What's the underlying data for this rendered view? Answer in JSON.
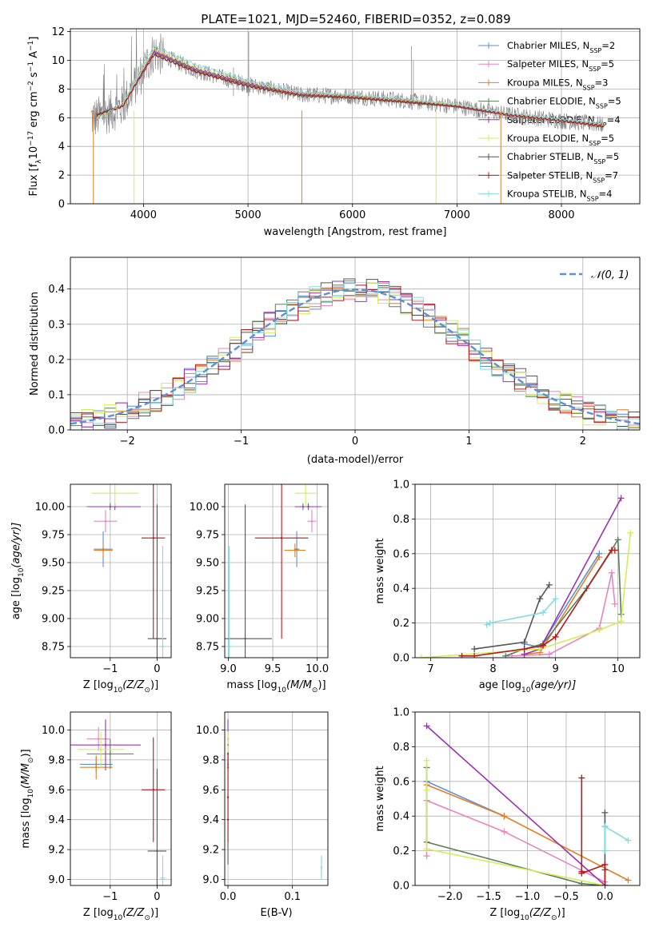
{
  "title": "PLATE=1021, MJD=52460, FIBERID=0352, z=0.089",
  "colors": {
    "chab_miles": "#5b8fd6",
    "salp_miles": "#e685be",
    "krou_miles": "#e67e22",
    "chab_elodie": "#5a7f5a",
    "salp_elodie": "#9b32b4",
    "krou_elodie": "#d4ec5a",
    "chab_stelib": "#555555",
    "salp_stelib": "#b5191c",
    "krou_stelib": "#82dce0",
    "gauss": "#5b8fd6",
    "grid": "#b0b0b0",
    "data": "#808080"
  },
  "chart_data": [
    {
      "id": "spectrum",
      "type": "line",
      "xlabel": "wavelength [Angstrom, rest frame]",
      "ylabel_main": "Flux [f",
      "ylabel_sub": "λ",
      "ylabel_rest": "10",
      "ylabel_exp": "−17",
      "ylabel_tail": " erg cm",
      "ylabel_e2": "−2",
      "ylabel_s": " s",
      "ylabel_e3": "−1",
      "ylabel_end": " A",
      "ylabel_e4": "−1",
      "ylabel_close": "]",
      "xlim": [
        3300,
        8750
      ],
      "ylim": [
        0,
        12.2
      ],
      "xticks": [
        4000,
        5000,
        6000,
        7000,
        8000
      ],
      "yticks": [
        0,
        2,
        4,
        6,
        8,
        10,
        12
      ],
      "legend_position": "top-right",
      "series": [
        {
          "name": "Chabrier MILES, N",
          "sub": "SSP",
          "tail": "=2",
          "key": "chab_miles",
          "x": [
            3550,
            3800,
            4100,
            4500,
            5000,
            5500,
            6000,
            6500,
            7000,
            7500,
            8000,
            8400
          ],
          "y": [
            6.0,
            6.8,
            10.6,
            9.3,
            8.3,
            7.6,
            7.5,
            7.2,
            6.8,
            6.2,
            5.8,
            5.5
          ]
        },
        {
          "name": "Salpeter MILES, N",
          "sub": "SSP",
          "tail": "=5",
          "key": "salp_miles",
          "x": [
            3550,
            3800,
            4100,
            4500,
            5000,
            5500,
            6000,
            6500,
            7000,
            7500,
            8000,
            8400
          ],
          "y": [
            6.1,
            6.9,
            10.7,
            9.4,
            8.4,
            7.7,
            7.5,
            7.2,
            6.8,
            6.2,
            5.8,
            5.5
          ]
        },
        {
          "name": "Kroupa MILES, N",
          "sub": "SSP",
          "tail": "=3",
          "key": "krou_miles",
          "x": [
            3550,
            3800,
            4100,
            4500,
            5000,
            5500,
            6000,
            6500,
            7000,
            7500,
            8000,
            8400
          ],
          "y": [
            6.0,
            6.8,
            10.6,
            9.3,
            8.3,
            7.6,
            7.5,
            7.2,
            6.8,
            6.2,
            5.8,
            5.5
          ]
        },
        {
          "name": "Chabrier ELODIE, N",
          "sub": "SSP",
          "tail": "=5",
          "key": "chab_elodie",
          "x": [
            3550,
            3800,
            4100,
            4500,
            5000,
            5500,
            6000,
            6500,
            7000,
            7500,
            8000,
            8400
          ],
          "y": [
            6.2,
            6.9,
            10.5,
            9.3,
            8.3,
            7.6,
            7.4,
            7.1,
            6.8,
            6.2,
            5.8,
            5.5
          ]
        },
        {
          "name": "Salpeter ELODIE, N",
          "sub": "SSP",
          "tail": "=4",
          "key": "salp_elodie",
          "x": [
            3550,
            3800,
            4100,
            4500,
            5000,
            5500,
            6000,
            6500,
            7000,
            7500,
            8000,
            8400
          ],
          "y": [
            6.1,
            6.9,
            10.6,
            9.4,
            8.4,
            7.7,
            7.5,
            7.2,
            6.8,
            6.2,
            5.8,
            5.5
          ]
        },
        {
          "name": "Kroupa ELODIE, N",
          "sub": "SSP",
          "tail": "=5",
          "key": "krou_elodie",
          "x": [
            3550,
            3800,
            4100,
            4500,
            5000,
            5500,
            6000,
            6500,
            7000,
            7500,
            8000,
            8400
          ],
          "y": [
            6.0,
            6.9,
            10.8,
            9.5,
            8.5,
            7.7,
            7.5,
            7.2,
            6.9,
            6.2,
            5.8,
            5.5
          ]
        },
        {
          "name": "Chabrier STELIB, N",
          "sub": "SSP",
          "tail": "=5",
          "key": "chab_stelib",
          "x": [
            3550,
            3800,
            4100,
            4500,
            5000,
            5500,
            6000,
            6500,
            7000,
            7500,
            8000,
            8400
          ],
          "y": [
            6.2,
            6.8,
            10.4,
            9.2,
            8.2,
            7.5,
            7.4,
            7.1,
            6.8,
            6.2,
            5.8,
            5.4
          ]
        },
        {
          "name": "Salpeter STELIB, N",
          "sub": "SSP",
          "tail": "=7",
          "key": "salp_stelib",
          "x": [
            3550,
            3800,
            4100,
            4500,
            5000,
            5500,
            6000,
            6500,
            7000,
            7500,
            8000,
            8400
          ],
          "y": [
            6.2,
            6.8,
            10.4,
            9.2,
            8.2,
            7.6,
            7.4,
            7.1,
            6.8,
            6.2,
            5.8,
            5.4
          ]
        },
        {
          "name": "Kroupa STELIB, N",
          "sub": "SSP",
          "tail": "=4",
          "key": "krou_stelib",
          "x": [
            3550,
            3800,
            4100,
            4500,
            5000,
            5500,
            6000,
            6500,
            7000,
            7500,
            8000,
            8400
          ],
          "y": [
            5.9,
            7.0,
            11.0,
            9.7,
            8.6,
            7.8,
            7.6,
            7.3,
            6.9,
            6.3,
            5.9,
            5.6
          ]
        }
      ]
    },
    {
      "id": "residuals",
      "type": "line",
      "xlabel": "(data-model)/error",
      "ylabel": "Normed distribution",
      "xlim": [
        -2.5,
        2.5
      ],
      "ylim": [
        0,
        0.49
      ],
      "xticks": [
        -2,
        -1,
        0,
        1,
        2
      ],
      "yticks": [
        0.0,
        0.1,
        0.2,
        0.3,
        0.4
      ],
      "legend": "𝒩(0, 1)",
      "legend_position": "top-right"
    },
    {
      "id": "age_vs_Z",
      "type": "scatter",
      "xlabel": "Z [log",
      "xlabel_sub": "10",
      "xlabel_tail": "(Z/Z",
      "xlabel_sun": "⊙",
      "xlabel_end": ")]",
      "ylabel": "age  [log",
      "ylabel_sub": "10",
      "ylabel_tail": "(age/yr)]",
      "xlim": [
        -1.85,
        0.3
      ],
      "ylim": [
        8.65,
        10.2
      ],
      "xticks": [
        -1,
        0
      ],
      "yticks": [
        8.75,
        9.0,
        9.25,
        9.5,
        9.75,
        10.0
      ],
      "points": [
        {
          "key": "chab_miles",
          "x": -1.15,
          "y": 9.62,
          "xerr": 0.2,
          "yerr": 0.16
        },
        {
          "key": "salp_miles",
          "x": -1.1,
          "y": 9.87,
          "xerr": 0.25,
          "yerr": 0.1
        },
        {
          "key": "krou_miles",
          "x": -1.15,
          "y": 9.61,
          "xerr": 0.2,
          "yerr": 0.06
        },
        {
          "key": "chab_elodie",
          "x": -1.0,
          "y": 10.0,
          "xerr": 0.5,
          "yerr": 0.03
        },
        {
          "key": "salp_elodie",
          "x": -0.9,
          "y": 10.0,
          "xerr": 0.55,
          "yerr": 0.03
        },
        {
          "key": "krou_elodie",
          "x": -0.9,
          "y": 10.12,
          "xerr": 0.5,
          "yerr": 0.12
        },
        {
          "key": "chab_stelib",
          "x": 0.0,
          "y": 8.82,
          "xerr": 0.2,
          "yerr": 1.2
        },
        {
          "key": "salp_stelib",
          "x": -0.08,
          "y": 9.72,
          "xerr": 0.25,
          "yerr": 0.9
        },
        {
          "key": "krou_stelib",
          "x": 0.12,
          "y": 8.75,
          "xerr": 0.05,
          "yerr": 0.9
        }
      ]
    },
    {
      "id": "age_vs_mass",
      "type": "scatter",
      "xlabel": "mass [log",
      "xlabel_sub": "10",
      "xlabel_tail": "(M/M",
      "xlabel_sun": "⊙",
      "xlabel_end": ")]",
      "xlim": [
        8.96,
        10.12
      ],
      "ylim": [
        8.65,
        10.2
      ],
      "xticks": [
        9.0,
        9.5,
        10.0
      ],
      "yticks": [
        8.75,
        9.0,
        9.25,
        9.5,
        9.75,
        10.0
      ],
      "points": [
        {
          "key": "chab_miles",
          "x": 9.77,
          "y": 9.62,
          "xerr": 0.03,
          "yerr": 0.16
        },
        {
          "key": "salp_miles",
          "x": 9.94,
          "y": 9.87,
          "xerr": 0.05,
          "yerr": 0.1
        },
        {
          "key": "krou_miles",
          "x": 9.75,
          "y": 9.61,
          "xerr": 0.12,
          "yerr": 0.06
        },
        {
          "key": "chab_elodie",
          "x": 9.84,
          "y": 10.0,
          "xerr": 0.08,
          "yerr": 0.03
        },
        {
          "key": "salp_elodie",
          "x": 9.9,
          "y": 10.0,
          "xerr": 0.15,
          "yerr": 0.03
        },
        {
          "key": "krou_elodie",
          "x": 9.87,
          "y": 10.12,
          "xerr": 0.12,
          "yerr": 0.12
        },
        {
          "key": "chab_stelib",
          "x": 9.19,
          "y": 8.82,
          "xerr": 0.3,
          "yerr": 1.2
        },
        {
          "key": "salp_stelib",
          "x": 9.6,
          "y": 9.72,
          "xerr": 0.3,
          "yerr": 0.9
        },
        {
          "key": "krou_stelib",
          "x": 9.01,
          "y": 8.75,
          "xerr": 0.1,
          "yerr": 0.9
        }
      ]
    },
    {
      "id": "weights_vs_age",
      "type": "line",
      "xlabel": "age  [log",
      "xlabel_sub": "10",
      "xlabel_tail": "(age/yr)]",
      "ylabel": "mass weight",
      "xlim": [
        6.75,
        10.35
      ],
      "ylim": [
        0,
        1.0
      ],
      "xticks": [
        7,
        8,
        9,
        10
      ],
      "yticks": [
        0.0,
        0.2,
        0.4,
        0.6,
        0.8,
        1.0
      ],
      "series": [
        {
          "key": "chab_miles",
          "x": [
            8.5,
            8.75,
            9.7
          ],
          "y": [
            0.08,
            0.06,
            0.6
          ]
        },
        {
          "key": "salp_miles",
          "x": [
            8.3,
            8.9,
            9.7,
            9.9,
            9.95
          ],
          "y": [
            0.01,
            0.02,
            0.17,
            0.49,
            0.31
          ]
        },
        {
          "key": "krou_miles",
          "x": [
            8.5,
            8.75,
            9.7
          ],
          "y": [
            0.02,
            0.03,
            0.58
          ]
        },
        {
          "key": "chab_elodie",
          "x": [
            8.2,
            8.5,
            8.8,
            9.5,
            10.0,
            10.05
          ],
          "y": [
            0.01,
            0.05,
            0.08,
            0.4,
            0.68,
            0.25
          ]
        },
        {
          "key": "salp_elodie",
          "x": [
            8.5,
            8.75,
            10.05
          ],
          "y": [
            0.02,
            0.05,
            0.92
          ]
        },
        {
          "key": "krou_elodie",
          "x": [
            6.85,
            8.75,
            9.7,
            10.05,
            10.2
          ],
          "y": [
            0.0,
            0.05,
            0.16,
            0.21,
            0.72
          ]
        },
        {
          "key": "chab_stelib",
          "x": [
            7.7,
            8.5,
            8.75,
            8.9
          ],
          "y": [
            0.05,
            0.09,
            0.34,
            0.42
          ]
        },
        {
          "key": "salp_stelib",
          "x": [
            7.5,
            7.7,
            8.5,
            8.8,
            9.0,
            9.9,
            9.95
          ],
          "y": [
            0.01,
            0.01,
            0.05,
            0.07,
            0.12,
            0.62,
            0.62
          ]
        },
        {
          "key": "krou_stelib",
          "x": [
            7.9,
            7.95,
            8.8,
            9.0
          ],
          "y": [
            0.19,
            0.2,
            0.26,
            0.34
          ]
        }
      ]
    },
    {
      "id": "mass_vs_Z",
      "type": "scatter",
      "xlabel": "Z [log",
      "xlabel_sub": "10",
      "xlabel_tail": "(Z/Z",
      "xlabel_sun": "⊙",
      "xlabel_end": ")]",
      "ylabel": "mass [log",
      "ylabel_sub": "10",
      "ylabel_tail": "(M/M",
      "ylabel_sun": "⊙",
      "ylabel_end": ")]",
      "xlim": [
        -1.85,
        0.3
      ],
      "ylim": [
        8.96,
        10.12
      ],
      "xticks": [
        -1,
        0
      ],
      "yticks": [
        9.0,
        9.2,
        9.4,
        9.6,
        9.8,
        10.0
      ],
      "points": [
        {
          "key": "chab_miles",
          "x": -1.3,
          "y": 9.77,
          "xerr": 0.35,
          "yerr": 0.05
        },
        {
          "key": "salp_miles",
          "x": -1.25,
          "y": 9.94,
          "xerr": 0.25,
          "yerr": 0.08
        },
        {
          "key": "krou_miles",
          "x": -1.3,
          "y": 9.75,
          "xerr": 0.35,
          "yerr": 0.08
        },
        {
          "key": "chab_elodie",
          "x": -1.0,
          "y": 9.84,
          "xerr": 0.5,
          "yerr": 0.1
        },
        {
          "key": "salp_elodie",
          "x": -1.1,
          "y": 9.9,
          "xerr": 0.75,
          "yerr": 0.17
        },
        {
          "key": "krou_elodie",
          "x": -1.2,
          "y": 9.87,
          "xerr": 0.5,
          "yerr": 0.12
        },
        {
          "key": "chab_stelib",
          "x": 0.0,
          "y": 9.19,
          "xerr": 0.2,
          "yerr": 0.55
        },
        {
          "key": "salp_stelib",
          "x": -0.08,
          "y": 9.6,
          "xerr": 0.25,
          "yerr": 0.35
        },
        {
          "key": "krou_stelib",
          "x": 0.12,
          "y": 9.01,
          "xerr": 0.05,
          "yerr": 0.15
        }
      ]
    },
    {
      "id": "mass_vs_ebv",
      "type": "scatter",
      "xlabel": "E(B-V)",
      "xlim": [
        -0.005,
        0.155
      ],
      "ylim": [
        8.96,
        10.12
      ],
      "xticks": [
        0.0,
        0.1
      ],
      "yticks": [
        9.0,
        9.2,
        9.4,
        9.6,
        9.8,
        10.0
      ],
      "points": [
        {
          "key": "chab_miles",
          "x": 0.0,
          "y": 9.77,
          "yerr": 0.05
        },
        {
          "key": "salp_miles",
          "x": 0.0,
          "y": 9.94,
          "yerr": 0.08
        },
        {
          "key": "krou_miles",
          "x": 0.0,
          "y": 9.75,
          "yerr": 0.08
        },
        {
          "key": "chab_elodie",
          "x": 0.0,
          "y": 9.84,
          "yerr": 0.1
        },
        {
          "key": "salp_elodie",
          "x": 0.0,
          "y": 9.9,
          "yerr": 0.17
        },
        {
          "key": "krou_elodie",
          "x": 0.0,
          "y": 9.87,
          "yerr": 0.12
        },
        {
          "key": "chab_stelib",
          "x": 0.0,
          "y": 9.4,
          "yerr": 0.3
        },
        {
          "key": "salp_stelib",
          "x": 0.0,
          "y": 9.55,
          "yerr": 0.3
        },
        {
          "key": "krou_stelib",
          "x": 0.145,
          "y": 9.08,
          "yerr": 0.08
        }
      ]
    },
    {
      "id": "weights_vs_Z",
      "type": "line",
      "xlabel": "Z [log",
      "xlabel_sub": "10",
      "xlabel_tail": "(Z/Z",
      "xlabel_sun": "⊙",
      "xlabel_end": ")]",
      "ylabel": "mass weight",
      "xlim": [
        -2.45,
        0.45
      ],
      "ylim": [
        0,
        1.0
      ],
      "xticks": [
        -2.0,
        -1.5,
        -1.0,
        -0.5,
        0.0
      ],
      "yticks": [
        0.0,
        0.2,
        0.4,
        0.6,
        0.8,
        1.0
      ],
      "series": [
        {
          "key": "chab_miles",
          "x": [
            -2.3,
            -1.3
          ],
          "y": [
            0.6,
            0.4
          ]
        },
        {
          "key": "salp_miles",
          "x": [
            -2.3,
            -2.3,
            -1.3,
            0.0
          ],
          "y": [
            0.17,
            0.49,
            0.31,
            0.02
          ]
        },
        {
          "key": "krou_miles",
          "x": [
            -2.3,
            -1.3,
            0.3
          ],
          "y": [
            0.58,
            0.4,
            0.03
          ]
        },
        {
          "key": "chab_elodie",
          "x": [
            -2.3,
            -2.3,
            -0.3,
            0.0
          ],
          "y": [
            0.68,
            0.25,
            0.01,
            0.0
          ]
        },
        {
          "key": "salp_elodie",
          "x": [
            -2.3,
            0.0
          ],
          "y": [
            0.92,
            0.0
          ]
        },
        {
          "key": "krou_elodie",
          "x": [
            -2.3,
            -2.3,
            -2.3,
            0.0
          ],
          "y": [
            0.72,
            0.55,
            0.21,
            0.0
          ]
        },
        {
          "key": "chab_stelib",
          "x": [
            0.0,
            0.0,
            0.0,
            0.0
          ],
          "y": [
            0.42,
            0.34,
            0.09,
            0.0
          ]
        },
        {
          "key": "salp_stelib",
          "x": [
            -0.3,
            -0.3,
            -0.3,
            0.0,
            0.0
          ],
          "y": [
            0.62,
            0.08,
            0.07,
            0.12,
            0.0
          ]
        },
        {
          "key": "krou_stelib",
          "x": [
            0.0,
            0.0,
            0.3
          ],
          "y": [
            0.2,
            0.34,
            0.26
          ]
        }
      ]
    }
  ]
}
